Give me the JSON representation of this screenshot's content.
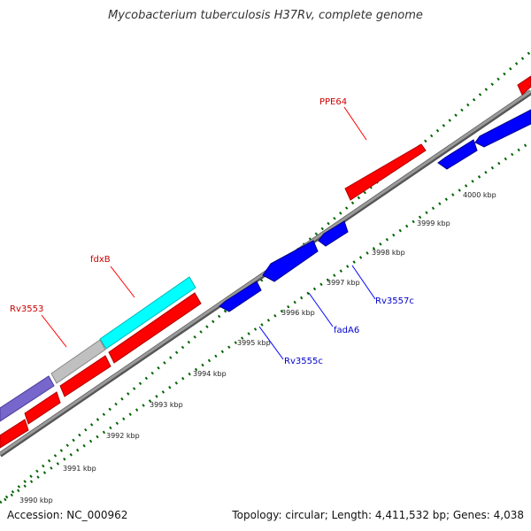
{
  "title": "Mycobacterium tuberculosis H37Rv, complete genome",
  "footer": {
    "accession": "Accession: NC_000962",
    "summary": "Topology: circular; Length: 4,411,532 bp; Genes: 4,038"
  },
  "colors": {
    "backbone": "#888888",
    "forward_cds": "#ff0000",
    "reverse_cds": "#0000ff",
    "highlight_cyan": "#00ffff",
    "grey_feature": "#bbbbbb",
    "purple_feature": "#7766cc",
    "tick": "#006600"
  },
  "scale": {
    "tick_labels": [
      "3990 kbp",
      "3991 kbp",
      "3992 kbp",
      "3993 kbp",
      "3994 kbp",
      "3995 kbp",
      "3996 kbp",
      "3997 kbp",
      "3998 kbp",
      "3999 kbp",
      "4000 kbp"
    ]
  },
  "gene_labels": [
    {
      "name": "PPE64",
      "strand": "forward"
    },
    {
      "name": "fdxB",
      "strand": "forward"
    },
    {
      "name": "Rv3553",
      "strand": "forward"
    },
    {
      "name": "Rv3557c",
      "strand": "reverse"
    },
    {
      "name": "fadA6",
      "strand": "reverse"
    },
    {
      "name": "Rv3555c",
      "strand": "reverse"
    }
  ]
}
